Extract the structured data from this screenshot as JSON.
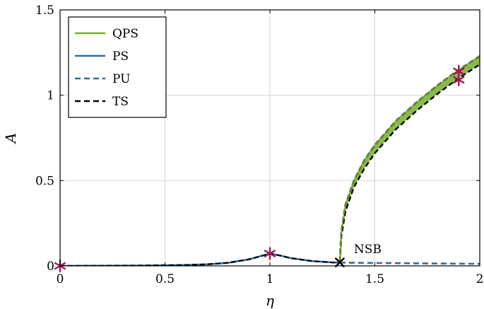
{
  "chart_data": {
    "type": "line",
    "xlabel": "η",
    "ylabel": "A",
    "xlim": [
      0,
      2
    ],
    "ylim": [
      0,
      1.5
    ],
    "xticks": [
      0,
      0.5,
      1,
      1.5,
      2
    ],
    "xtick_labels": [
      "0",
      "0.5",
      "1",
      "1.5",
      "2"
    ],
    "yticks": [
      0,
      0.5,
      1,
      1.5
    ],
    "ytick_labels": [
      "0",
      "0.5",
      "1",
      "1.5"
    ],
    "grid": true,
    "legend_position": "top-left",
    "series": [
      {
        "name": "QPS",
        "color": "#77AC30",
        "style": "band",
        "x": [
          1.333,
          1.34,
          1.36,
          1.4,
          1.45,
          1.5,
          1.6,
          1.7,
          1.8,
          1.9,
          2.0
        ],
        "upper": [
          0.03,
          0.2,
          0.36,
          0.5,
          0.62,
          0.71,
          0.85,
          0.96,
          1.06,
          1.15,
          1.23
        ],
        "lower": [
          0.02,
          0.17,
          0.32,
          0.46,
          0.57,
          0.66,
          0.8,
          0.91,
          1.01,
          1.1,
          1.18
        ]
      },
      {
        "name": "PS",
        "color": "#2E6DA4",
        "style": "solid",
        "x": [
          0,
          0.2,
          0.4,
          0.6,
          0.7,
          0.8,
          0.9,
          0.95,
          1.0,
          1.05,
          1.1,
          1.2,
          1.3,
          1.333
        ],
        "values": [
          0.0,
          0.001,
          0.002,
          0.005,
          0.009,
          0.018,
          0.038,
          0.055,
          0.072,
          0.06,
          0.045,
          0.028,
          0.02,
          0.019
        ]
      },
      {
        "name": "PU",
        "color": "#2E6DA4",
        "style": "dashed",
        "x": [
          1.333,
          1.5,
          1.7,
          1.9,
          2.0
        ],
        "values": [
          0.019,
          0.017,
          0.015,
          0.013,
          0.012
        ]
      },
      {
        "name": "TS",
        "color": "#000000",
        "style": "dashed",
        "x": [
          0,
          0.2,
          0.4,
          0.6,
          0.7,
          0.8,
          0.9,
          0.95,
          1.0,
          1.05,
          1.1,
          1.2,
          1.3,
          1.333
        ],
        "values": [
          0.0,
          0.001,
          0.002,
          0.005,
          0.009,
          0.018,
          0.038,
          0.055,
          0.072,
          0.06,
          0.045,
          0.028,
          0.02,
          0.019
        ]
      }
    ],
    "markers": [
      {
        "x": 0.0,
        "y": 0.0,
        "color": "#9B1B50",
        "symbol": "asterisk"
      },
      {
        "x": 1.0,
        "y": 0.072,
        "color": "#9B1B50",
        "symbol": "asterisk"
      },
      {
        "x": 1.9,
        "y": 1.14,
        "color": "#9B1B50",
        "symbol": "asterisk"
      },
      {
        "x": 1.9,
        "y": 1.09,
        "color": "#9B1B50",
        "symbol": "asterisk"
      },
      {
        "x": 1.333,
        "y": 0.02,
        "color": "#000000",
        "symbol": "cross"
      }
    ],
    "annotations": [
      {
        "text": "NSB",
        "x": 1.333,
        "y": 0.02
      }
    ]
  }
}
